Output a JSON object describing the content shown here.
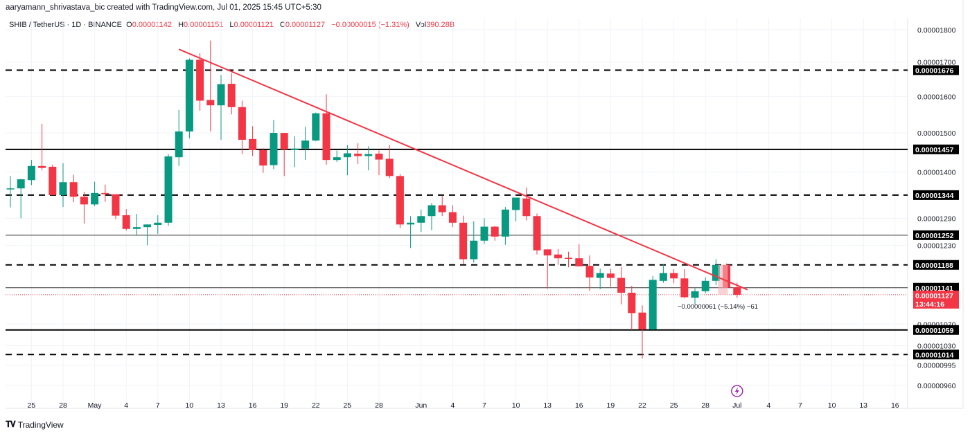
{
  "credit": "aaryamann_shrivastava_bic created with TradingView.com, Jul 01, 2025 15:45 UTC+5:30",
  "legend": {
    "symbol": "SHIB / TetherUS · 1D · BINANCE",
    "o_label": "O",
    "o": "0.00001142",
    "h_label": "H",
    "h": "0.00001151",
    "l_label": "L",
    "l": "0.00001121",
    "c_label": "C",
    "c": "0.00001127",
    "change": "−0.00000015 (−1.31%)",
    "vol_label": "Vol",
    "vol": "390.28B"
  },
  "logo": {
    "mark": "TV",
    "text": "TradingView"
  },
  "colors": {
    "up": "#089981",
    "down": "#f23645",
    "trendline": "#f23645",
    "level": "#000000",
    "current_price": "#f23645",
    "ghost": "#f7b4bb",
    "event": "#9c27b0"
  },
  "chart_data": {
    "type": "candlestick",
    "y_scale": "log",
    "ylim": [
      9.5e-06,
      1.82e-05
    ],
    "grid": true,
    "y_ticks": [
      "0.00001800",
      "0.00001700",
      "0.00001600",
      "0.00001500",
      "0.00001400",
      "0.00001290",
      "0.00001230",
      "0.00001070",
      "0.00001030",
      "0.00000995",
      "0.00000960"
    ],
    "x_ticks": [
      {
        "date": "2025-04-25",
        "label": "25"
      },
      {
        "date": "2025-04-28",
        "label": "28"
      },
      {
        "date": "2025-05-01",
        "label": "May"
      },
      {
        "date": "2025-05-04",
        "label": "4"
      },
      {
        "date": "2025-05-07",
        "label": "7"
      },
      {
        "date": "2025-05-10",
        "label": "10"
      },
      {
        "date": "2025-05-13",
        "label": "13"
      },
      {
        "date": "2025-05-16",
        "label": "16"
      },
      {
        "date": "2025-05-19",
        "label": "19"
      },
      {
        "date": "2025-05-22",
        "label": "22"
      },
      {
        "date": "2025-05-25",
        "label": "25"
      },
      {
        "date": "2025-05-28",
        "label": "28"
      },
      {
        "date": "2025-06-01",
        "label": "Jun"
      },
      {
        "date": "2025-06-04",
        "label": "4"
      },
      {
        "date": "2025-06-07",
        "label": "7"
      },
      {
        "date": "2025-06-10",
        "label": "10"
      },
      {
        "date": "2025-06-13",
        "label": "13"
      },
      {
        "date": "2025-06-16",
        "label": "16"
      },
      {
        "date": "2025-06-19",
        "label": "19"
      },
      {
        "date": "2025-06-22",
        "label": "22"
      },
      {
        "date": "2025-06-25",
        "label": "25"
      },
      {
        "date": "2025-06-28",
        "label": "28"
      },
      {
        "date": "2025-07-01",
        "label": "Jul"
      },
      {
        "date": "2025-07-04",
        "label": "4"
      },
      {
        "date": "2025-07-07",
        "label": "7"
      },
      {
        "date": "2025-07-10",
        "label": "10"
      },
      {
        "date": "2025-07-13",
        "label": "13"
      },
      {
        "date": "2025-07-16",
        "label": "16"
      }
    ],
    "candles_columns": [
      "date",
      "open",
      "high",
      "low",
      "close"
    ],
    "candles": [
      [
        "2025-04-23",
        1.358e-05,
        1.39e-05,
        1.315e-05,
        1.36e-05
      ],
      [
        "2025-04-24",
        1.36e-05,
        1.383e-05,
        1.29e-05,
        1.382e-05
      ],
      [
        "2025-04-25",
        1.38e-05,
        1.43e-05,
        1.368e-05,
        1.415e-05
      ],
      [
        "2025-04-26",
        1.415e-05,
        1.524e-05,
        1.404e-05,
        1.41e-05
      ],
      [
        "2025-04-27",
        1.413e-05,
        1.418e-05,
        1.344e-05,
        1.344e-05
      ],
      [
        "2025-04-28",
        1.344e-05,
        1.422e-05,
        1.316e-05,
        1.375e-05
      ],
      [
        "2025-04-29",
        1.375e-05,
        1.393e-05,
        1.327e-05,
        1.34e-05
      ],
      [
        "2025-04-30",
        1.34e-05,
        1.352e-05,
        1.278e-05,
        1.322e-05
      ],
      [
        "2025-05-01",
        1.322e-05,
        1.376e-05,
        1.318e-05,
        1.349e-05
      ],
      [
        "2025-05-02",
        1.349e-05,
        1.369e-05,
        1.328e-05,
        1.346e-05
      ],
      [
        "2025-05-03",
        1.346e-05,
        1.346e-05,
        1.288e-05,
        1.296e-05
      ],
      [
        "2025-05-04",
        1.297e-05,
        1.311e-05,
        1.262e-05,
        1.266e-05
      ],
      [
        "2025-05-05",
        1.266e-05,
        1.3e-05,
        1.252e-05,
        1.27e-05
      ],
      [
        "2025-05-06",
        1.27e-05,
        1.276e-05,
        1.23e-05,
        1.276e-05
      ],
      [
        "2025-05-07",
        1.275e-05,
        1.297e-05,
        1.255e-05,
        1.28e-05
      ],
      [
        "2025-05-08",
        1.28e-05,
        1.445e-05,
        1.273e-05,
        1.439e-05
      ],
      [
        "2025-05-09",
        1.437e-05,
        1.562e-05,
        1.415e-05,
        1.504e-05
      ],
      [
        "2025-05-10",
        1.504e-05,
        1.711e-05,
        1.486e-05,
        1.707e-05
      ],
      [
        "2025-05-11",
        1.707e-05,
        1.727e-05,
        1.56e-05,
        1.588e-05
      ],
      [
        "2025-05-12",
        1.59e-05,
        1.766e-05,
        1.504e-05,
        1.575e-05
      ],
      [
        "2025-05-13",
        1.575e-05,
        1.662e-05,
        1.482e-05,
        1.635e-05
      ],
      [
        "2025-05-14",
        1.636e-05,
        1.667e-05,
        1.55e-05,
        1.57e-05
      ],
      [
        "2025-05-15",
        1.57e-05,
        1.588e-05,
        1.445e-05,
        1.482e-05
      ],
      [
        "2025-05-16",
        1.484e-05,
        1.518e-05,
        1.44e-05,
        1.455e-05
      ],
      [
        "2025-05-17",
        1.455e-05,
        1.46e-05,
        1.398e-05,
        1.416e-05
      ],
      [
        "2025-05-18",
        1.417e-05,
        1.535e-05,
        1.407e-05,
        1.5e-05
      ],
      [
        "2025-05-19",
        1.5e-05,
        1.5e-05,
        1.39e-05,
        1.457e-05
      ],
      [
        "2025-05-20",
        1.455e-05,
        1.491e-05,
        1.412e-05,
        1.459e-05
      ],
      [
        "2025-05-21",
        1.459e-05,
        1.516e-05,
        1.43e-05,
        1.48e-05
      ],
      [
        "2025-05-22",
        1.48e-05,
        1.555e-05,
        1.478e-05,
        1.553e-05
      ],
      [
        "2025-05-23",
        1.553e-05,
        1.606e-05,
        1.418e-05,
        1.43e-05
      ],
      [
        "2025-05-24",
        1.43e-05,
        1.454e-05,
        1.425e-05,
        1.437e-05
      ],
      [
        "2025-05-25",
        1.437e-05,
        1.468e-05,
        1.392e-05,
        1.447e-05
      ],
      [
        "2025-05-26",
        1.446e-05,
        1.473e-05,
        1.42e-05,
        1.44e-05
      ],
      [
        "2025-05-27",
        1.44e-05,
        1.465e-05,
        1.404e-05,
        1.445e-05
      ],
      [
        "2025-05-28",
        1.446e-05,
        1.454e-05,
        1.392e-05,
        1.431e-05
      ],
      [
        "2025-05-29",
        1.433e-05,
        1.468e-05,
        1.385e-05,
        1.39e-05
      ],
      [
        "2025-05-30",
        1.39e-05,
        1.395e-05,
        1.268e-05,
        1.276e-05
      ],
      [
        "2025-05-31",
        1.276e-05,
        1.295e-05,
        1.224e-05,
        1.28e-05
      ],
      [
        "2025-06-01",
        1.28e-05,
        1.31e-05,
        1.259e-05,
        1.295e-05
      ],
      [
        "2025-06-02",
        1.295e-05,
        1.325e-05,
        1.263e-05,
        1.32e-05
      ],
      [
        "2025-06-03",
        1.32e-05,
        1.343e-05,
        1.295e-05,
        1.304e-05
      ],
      [
        "2025-06-04",
        1.304e-05,
        1.32e-05,
        1.27e-05,
        1.28e-05
      ],
      [
        "2025-06-05",
        1.28e-05,
        1.296e-05,
        1.189e-05,
        1.2e-05
      ],
      [
        "2025-06-06",
        1.2e-05,
        1.283e-05,
        1.193e-05,
        1.24e-05
      ],
      [
        "2025-06-07",
        1.24e-05,
        1.29e-05,
        1.233e-05,
        1.271e-05
      ],
      [
        "2025-06-08",
        1.271e-05,
        1.273e-05,
        1.24e-05,
        1.249e-05
      ],
      [
        "2025-06-09",
        1.249e-05,
        1.316e-05,
        1.231e-05,
        1.31e-05
      ],
      [
        "2025-06-10",
        1.309e-05,
        1.338e-05,
        1.283e-05,
        1.338e-05
      ],
      [
        "2025-06-11",
        1.336e-05,
        1.362e-05,
        1.285e-05,
        1.295e-05
      ],
      [
        "2025-06-12",
        1.295e-05,
        1.301e-05,
        1.21e-05,
        1.219e-05
      ],
      [
        "2025-06-13",
        1.221e-05,
        1.221e-05,
        1.139e-05,
        1.208e-05
      ],
      [
        "2025-06-14",
        1.21e-05,
        1.222e-05,
        1.188e-05,
        1.202e-05
      ],
      [
        "2025-06-15",
        1.203e-05,
        1.216e-05,
        1.183e-05,
        1.202e-05
      ],
      [
        "2025-06-16",
        1.202e-05,
        1.232e-05,
        1.185e-05,
        1.185e-05
      ],
      [
        "2025-06-17",
        1.186e-05,
        1.208e-05,
        1.135e-05,
        1.162e-05
      ],
      [
        "2025-06-18",
        1.161e-05,
        1.18e-05,
        1.138e-05,
        1.171e-05
      ],
      [
        "2025-06-19",
        1.17e-05,
        1.18e-05,
        1.143e-05,
        1.161e-05
      ],
      [
        "2025-06-20",
        1.161e-05,
        1.184e-05,
        1.108e-05,
        1.131e-05
      ],
      [
        "2025-06-21",
        1.131e-05,
        1.145e-05,
        1.059e-05,
        1.091e-05
      ],
      [
        "2025-06-22",
        1.092e-05,
        1.106e-05,
        1.007e-05,
        1.06e-05
      ],
      [
        "2025-06-23",
        1.06e-05,
        1.165e-05,
        1.059e-05,
        1.157e-05
      ],
      [
        "2025-06-24",
        1.155e-05,
        1.19e-05,
        1.151e-05,
        1.171e-05
      ],
      [
        "2025-06-25",
        1.171e-05,
        1.179e-05,
        1.15e-05,
        1.16e-05
      ],
      [
        "2025-06-26",
        1.16e-05,
        1.179e-05,
        1.12e-05,
        1.122e-05
      ],
      [
        "2025-06-27",
        1.121e-05,
        1.14e-05,
        1.108e-05,
        1.134e-05
      ],
      [
        "2025-06-28",
        1.134e-05,
        1.162e-05,
        1.13e-05,
        1.155e-05
      ],
      [
        "2025-06-29",
        1.155e-05,
        1.2e-05,
        1.146e-05,
        1.188e-05
      ],
      [
        "2025-06-30",
        1.188e-05,
        1.191e-05,
        1.141e-05,
        1.141e-05
      ],
      [
        "2025-07-01",
        1.142e-05,
        1.151e-05,
        1.121e-05,
        1.127e-05
      ]
    ],
    "levels": [
      {
        "price": 1.676e-05,
        "label": "0.00001676",
        "style": "dashed"
      },
      {
        "price": 1.457e-05,
        "label": "0.00001457",
        "style": "solid"
      },
      {
        "price": 1.344e-05,
        "label": "0.00001344",
        "style": "dashed"
      },
      {
        "price": 1.252e-05,
        "label": "0.00001252",
        "style": "thin"
      },
      {
        "price": 1.188e-05,
        "label": "0.00001188",
        "style": "dashed"
      },
      {
        "price": 1.141e-05,
        "label": "0.00001141",
        "style": "thin"
      },
      {
        "price": 1.059e-05,
        "label": "0.00001059",
        "style": "solid"
      },
      {
        "price": 1.014e-05,
        "label": "0.00001014",
        "style": "dashed"
      }
    ],
    "trendline": {
      "from": {
        "date": "2025-05-09",
        "price": 1.739e-05
      },
      "to": {
        "date": "2025-07-02",
        "price": 1.137e-05
      }
    },
    "current_price": {
      "price": 1.127e-05,
      "label": "0.00001127",
      "countdown": "13:44:16"
    },
    "measure": {
      "from": {
        "date": "2025-06-29",
        "price": 1.188e-05
      },
      "to": {
        "date": "2025-07-01",
        "price": 1.127e-05
      },
      "label": "−0.00000061 (−5.14%) −61"
    },
    "event_marker": {
      "date": "2025-07-01",
      "icon": "lightning-icon"
    }
  }
}
